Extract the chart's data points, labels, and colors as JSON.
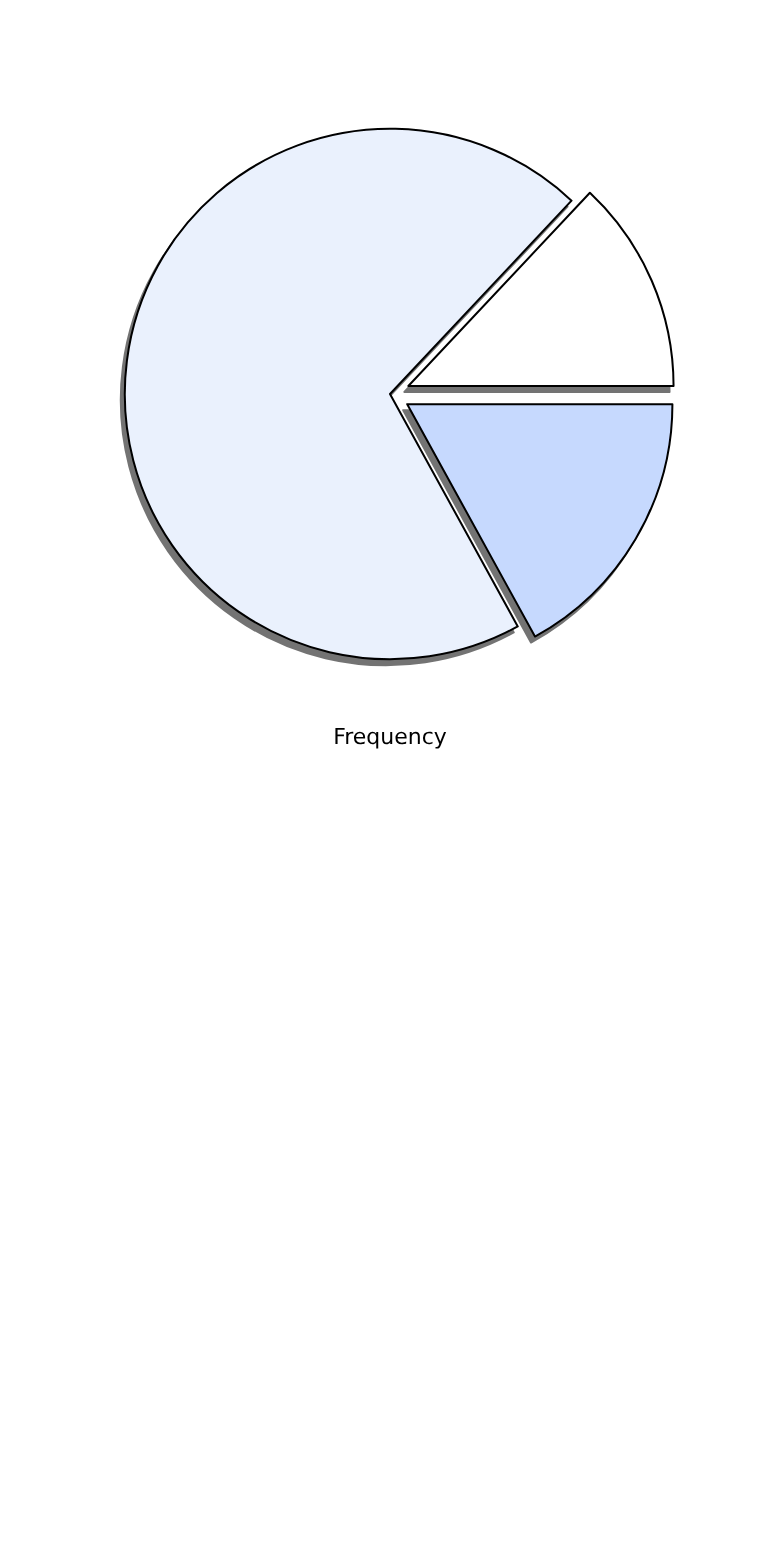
{
  "chart_data": {
    "type": "pie",
    "title": "Frequency",
    "categories": [
      null,
      null,
      null
    ],
    "values": [
      17,
      70,
      13
    ],
    "colors": [
      "#c6d9fe",
      "#eaf1fd",
      "#ffffff"
    ]
  }
}
